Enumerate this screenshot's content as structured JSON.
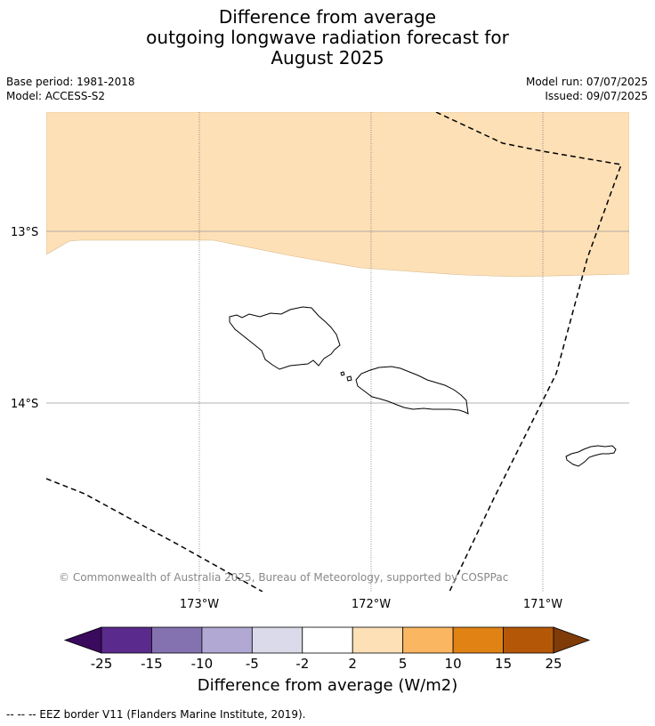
{
  "title": {
    "line1": "Difference from average",
    "line2": "outgoing longwave radiation forecast for",
    "line3": "August 2025"
  },
  "meta": {
    "base_period": "Base period: 1981-2018",
    "model": "Model: ACCESS-S2",
    "model_run": "Model run: 07/07/2025",
    "issued": "Issued: 09/07/2025"
  },
  "map": {
    "lat_labels": [
      "13°S",
      "14°S"
    ],
    "lon_labels": [
      "173°W",
      "172°W",
      "171°W"
    ],
    "copyright": "© Commonwealth of Australia 2025, Bureau of Meteorology, supported by COSPPac",
    "anomaly_fill_color": "#fde0b6",
    "land_outline_color": "#000000",
    "eez_line_style": "dashed"
  },
  "colorbar": {
    "tick_labels": [
      "-25",
      "-15",
      "-10",
      "-5",
      "-2",
      "2",
      "5",
      "10",
      "15",
      "25"
    ],
    "colors": [
      "#3a0a5e",
      "#5a2a8c",
      "#8472b0",
      "#b1a9d3",
      "#dadaea",
      "#ffffff",
      "#fde0b6",
      "#fbb662",
      "#e08314",
      "#b45808",
      "#7f3b08"
    ],
    "title": "Difference from average (W/m2)"
  },
  "footnote": "--  --  -- EEZ border V11 (Flanders Marine Institute, 2019)."
}
